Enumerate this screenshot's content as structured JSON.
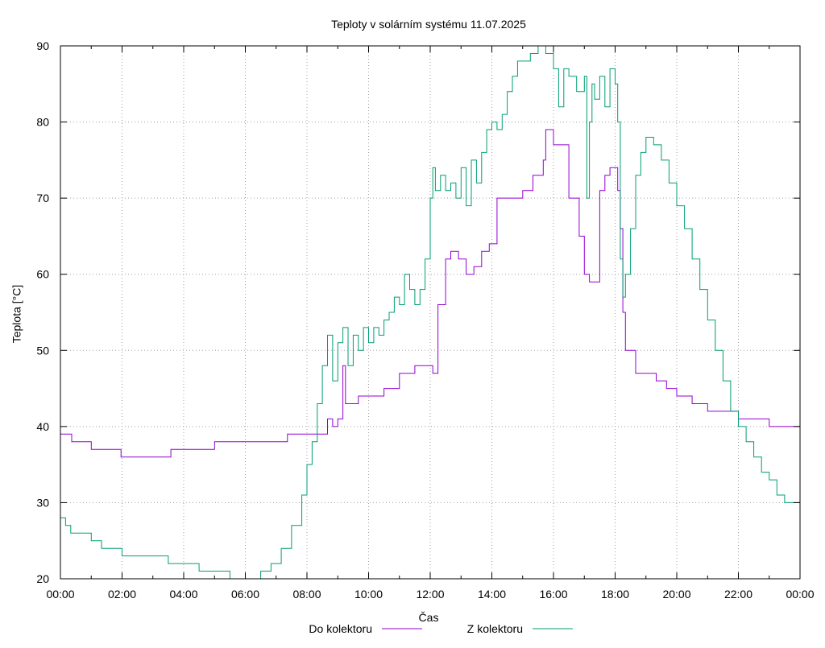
{
  "chart_data": {
    "type": "line",
    "title": "Teploty v solárním systému 11.07.2025",
    "xlabel": "Čas",
    "ylabel": "Teplota [°C]",
    "xlim": [
      "00:00",
      "24:00"
    ],
    "ylim": [
      20,
      90
    ],
    "grid": true,
    "legend_position": "bottom",
    "x_tick_labels": [
      "00:00",
      "02:00",
      "04:00",
      "06:00",
      "08:00",
      "10:00",
      "12:00",
      "14:00",
      "16:00",
      "18:00",
      "20:00",
      "22:00",
      "00:00"
    ],
    "y_tick_labels": [
      "20",
      "30",
      "40",
      "50",
      "60",
      "70",
      "80",
      "90"
    ],
    "series": [
      {
        "name": "Do kolektoru",
        "color": "#9400d3",
        "x": [
          "00:00",
          "00:20",
          "00:22",
          "01:00",
          "01:55",
          "01:58",
          "02:05",
          "03:30",
          "03:35",
          "05:00",
          "05:05",
          "07:20",
          "07:22",
          "08:30",
          "08:40",
          "08:50",
          "09:00",
          "09:10",
          "09:15",
          "09:20",
          "09:40",
          "10:00",
          "10:30",
          "11:00",
          "11:30",
          "11:55",
          "12:05",
          "12:15",
          "12:30",
          "12:40",
          "12:55",
          "13:10",
          "13:25",
          "13:40",
          "13:55",
          "14:10",
          "14:40",
          "15:00",
          "15:20",
          "15:40",
          "15:45",
          "16:00",
          "16:30",
          "16:50",
          "17:00",
          "17:10",
          "17:30",
          "17:40",
          "17:50",
          "18:05",
          "18:10",
          "18:15",
          "18:20",
          "18:40",
          "19:00",
          "19:20",
          "19:40",
          "20:00",
          "20:30",
          "21:00",
          "21:30",
          "22:00",
          "22:30",
          "23:00",
          "23:30",
          "23:50",
          "24:00"
        ],
        "y": [
          39,
          39,
          38,
          37,
          37,
          36,
          36,
          36,
          37,
          38,
          38,
          38,
          39,
          39,
          41,
          40,
          41,
          48,
          43,
          43,
          44,
          44,
          45,
          47,
          48,
          48,
          47,
          56,
          62,
          63,
          62,
          60,
          61,
          63,
          64,
          70,
          70,
          71,
          73,
          75,
          79,
          77,
          70,
          65,
          60,
          59,
          71,
          73,
          74,
          71,
          66,
          55,
          50,
          47,
          47,
          46,
          45,
          44,
          43,
          42,
          42,
          41,
          41,
          40,
          40,
          40,
          39
        ]
      },
      {
        "name": "Z kolektoru",
        "color": "#009e73",
        "x": [
          "00:00",
          "00:10",
          "00:20",
          "00:40",
          "01:00",
          "01:20",
          "01:40",
          "02:00",
          "02:30",
          "03:00",
          "03:30",
          "04:00",
          "04:30",
          "05:00",
          "05:30",
          "06:00",
          "06:10",
          "06:30",
          "06:50",
          "07:10",
          "07:30",
          "07:50",
          "08:00",
          "08:10",
          "08:20",
          "08:30",
          "08:40",
          "08:50",
          "09:00",
          "09:10",
          "09:20",
          "09:30",
          "09:40",
          "09:50",
          "10:00",
          "10:10",
          "10:20",
          "10:30",
          "10:40",
          "10:50",
          "11:00",
          "11:10",
          "11:20",
          "11:30",
          "11:40",
          "11:50",
          "12:00",
          "12:05",
          "12:10",
          "12:20",
          "12:30",
          "12:40",
          "12:50",
          "13:00",
          "13:10",
          "13:20",
          "13:30",
          "13:40",
          "13:50",
          "14:00",
          "14:10",
          "14:20",
          "14:30",
          "14:40",
          "14:50",
          "15:00",
          "15:15",
          "15:30",
          "15:45",
          "16:00",
          "16:10",
          "16:20",
          "16:30",
          "16:45",
          "17:00",
          "17:05",
          "17:10",
          "17:15",
          "17:20",
          "17:30",
          "17:40",
          "17:50",
          "18:00",
          "18:05",
          "18:10",
          "18:15",
          "18:20",
          "18:30",
          "18:40",
          "18:50",
          "19:00",
          "19:15",
          "19:30",
          "19:45",
          "20:00",
          "20:15",
          "20:30",
          "20:45",
          "21:00",
          "21:15",
          "21:30",
          "21:45",
          "22:00",
          "22:15",
          "22:30",
          "22:45",
          "23:00",
          "23:15",
          "23:30",
          "24:00"
        ],
        "y": [
          28,
          27,
          26,
          26,
          25,
          24,
          24,
          23,
          23,
          23,
          22,
          22,
          21,
          21,
          20,
          20,
          20,
          21,
          22,
          24,
          27,
          31,
          35,
          38,
          43,
          48,
          52,
          46,
          51,
          53,
          48,
          52,
          50,
          53,
          51,
          53,
          52,
          54,
          55,
          57,
          56,
          60,
          58,
          56,
          58,
          62,
          70,
          74,
          71,
          73,
          71,
          72,
          70,
          74,
          69,
          75,
          72,
          76,
          79,
          80,
          79,
          81,
          84,
          86,
          88,
          88,
          89,
          90,
          89,
          87,
          82,
          87,
          86,
          84,
          86,
          70,
          80,
          85,
          83,
          86,
          82,
          87,
          85,
          80,
          62,
          57,
          60,
          66,
          73,
          76,
          78,
          77,
          75,
          72,
          69,
          66,
          62,
          58,
          54,
          50,
          46,
          42,
          40,
          38,
          36,
          34,
          33,
          31,
          30,
          30
        ]
      }
    ]
  }
}
